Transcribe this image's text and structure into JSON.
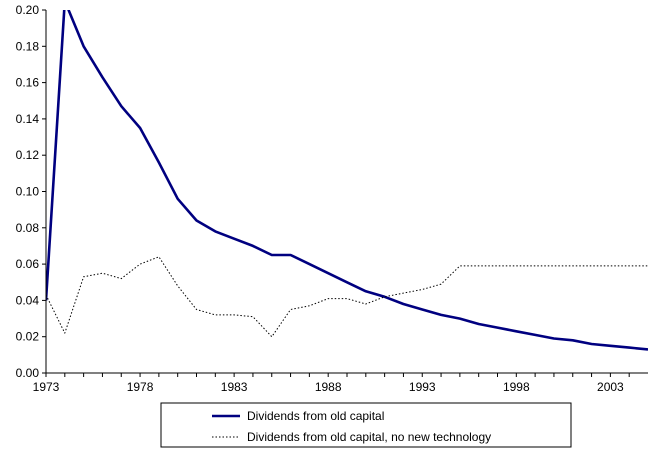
{
  "chart_data": {
    "type": "line",
    "title": "",
    "xlabel": "",
    "ylabel": "",
    "xlim": [
      1973,
      2005
    ],
    "ylim": [
      0,
      0.2
    ],
    "x_ticks": [
      "1973",
      "1978",
      "1983",
      "1988",
      "1993",
      "1998",
      "2003"
    ],
    "y_ticks": [
      "0.00",
      "0.02",
      "0.04",
      "0.06",
      "0.08",
      "0.10",
      "0.12",
      "0.14",
      "0.16",
      "0.18",
      "0.20"
    ],
    "grid": false,
    "legend_position": "bottom",
    "series": [
      {
        "name": "Dividends from old capital",
        "color": "#000080",
        "style": "solid",
        "x": [
          1973,
          1974,
          1975,
          1976,
          1977,
          1978,
          1979,
          1980,
          1981,
          1982,
          1983,
          1984,
          1985,
          1986,
          1987,
          1988,
          1989,
          1990,
          1991,
          1992,
          1993,
          1994,
          1995,
          1996,
          1997,
          1998,
          1999,
          2000,
          2001,
          2002,
          2003,
          2004,
          2005
        ],
        "values": [
          0.04,
          0.205,
          0.18,
          0.163,
          0.147,
          0.135,
          0.116,
          0.096,
          0.084,
          0.078,
          0.074,
          0.07,
          0.065,
          0.065,
          0.06,
          0.055,
          0.05,
          0.045,
          0.042,
          0.038,
          0.035,
          0.032,
          0.03,
          0.027,
          0.025,
          0.023,
          0.021,
          0.019,
          0.018,
          0.016,
          0.015,
          0.014,
          0.013
        ]
      },
      {
        "name": "Dividends from old capital, no new technology",
        "color": "#000000",
        "style": "dotted",
        "x": [
          1973,
          1974,
          1975,
          1976,
          1977,
          1978,
          1979,
          1980,
          1981,
          1982,
          1983,
          1984,
          1985,
          1986,
          1987,
          1988,
          1989,
          1990,
          1991,
          1992,
          1993,
          1994,
          1995,
          1996,
          1997,
          1998,
          1999,
          2000,
          2001,
          2002,
          2003,
          2004,
          2005
        ],
        "values": [
          0.043,
          0.022,
          0.053,
          0.055,
          0.052,
          0.06,
          0.064,
          0.048,
          0.035,
          0.032,
          0.032,
          0.031,
          0.02,
          0.035,
          0.037,
          0.041,
          0.041,
          0.038,
          0.042,
          0.044,
          0.046,
          0.049,
          0.059,
          0.059,
          0.059,
          0.059,
          0.059,
          0.059,
          0.059,
          0.059,
          0.059,
          0.059,
          0.059
        ]
      }
    ]
  }
}
